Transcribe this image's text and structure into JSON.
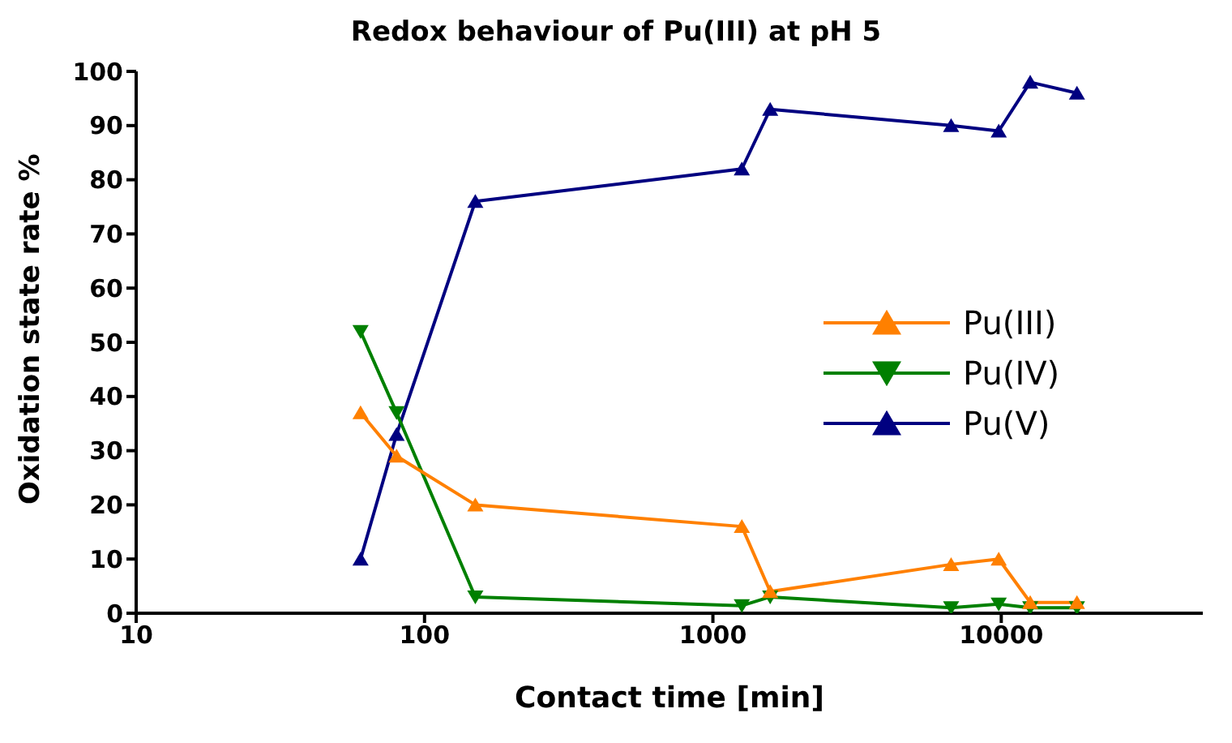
{
  "chart_data": {
    "type": "line",
    "title": "Redox behaviour of Pu(III) at pH 5",
    "xlabel": "Contact time [min]",
    "ylabel": "Oxidation state rate %",
    "log": "x",
    "xlim": [
      10,
      50000
    ],
    "xticks": [
      10,
      100,
      1000,
      10000
    ],
    "ylim": [
      0,
      100
    ],
    "yticks": [
      0,
      10,
      20,
      30,
      40,
      50,
      60,
      70,
      80,
      90,
      100
    ],
    "grid": false,
    "legend": "right",
    "x": [
      60,
      80,
      150,
      1260,
      1580,
      6700,
      9800,
      12600,
      18300
    ],
    "series": [
      {
        "name": "Pu(III)",
        "color": "#ff8000",
        "marker": "triangle",
        "values": [
          37,
          29,
          20,
          16,
          4,
          9,
          10,
          2,
          2
        ]
      },
      {
        "name": "Pu(IV)",
        "color": "#008000",
        "marker": "triangle-down",
        "values": [
          52,
          37,
          3,
          1.4,
          3,
          1,
          1.7,
          1,
          1
        ]
      },
      {
        "name": "Pu(V)",
        "color": "#000080",
        "marker": "triangle",
        "values": [
          10,
          33,
          76,
          82,
          93,
          90,
          89,
          98,
          96
        ]
      }
    ]
  }
}
